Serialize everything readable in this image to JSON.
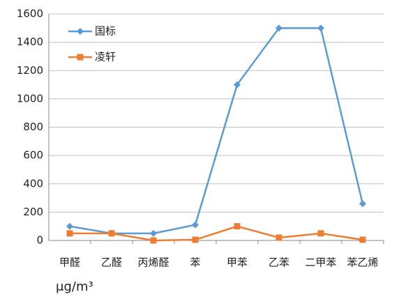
{
  "chart_data": {
    "type": "line",
    "categories": [
      "甲醛",
      "乙醛",
      "丙烯醛",
      "苯",
      "甲苯",
      "乙苯",
      "二甲苯",
      "苯乙烯"
    ],
    "series": [
      {
        "name": "国标",
        "color": "#5b9bd5",
        "marker": "diamond",
        "values": [
          100,
          50,
          50,
          110,
          1100,
          1500,
          1500,
          260
        ]
      },
      {
        "name": "凌轩",
        "color": "#ed7d31",
        "marker": "square",
        "values": [
          50,
          50,
          0,
          5,
          100,
          20,
          50,
          5
        ]
      }
    ],
    "ylim": [
      0,
      1600
    ],
    "yticks": [
      0,
      200,
      400,
      600,
      800,
      1000,
      1200,
      1400,
      1600
    ],
    "grid": true,
    "legend": "top-left",
    "unit_label": "μg/m³"
  }
}
